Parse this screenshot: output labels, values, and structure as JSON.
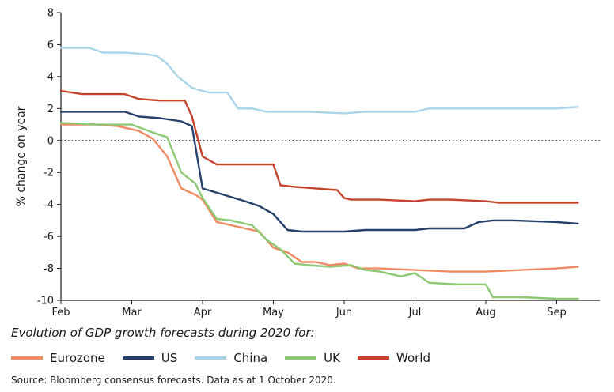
{
  "chart_data": {
    "type": "line",
    "title": "",
    "subtitle": "Evolution of GDP growth forecasts during 2020 for:",
    "xlabel": "",
    "ylabel": "% change on year",
    "ylim": [
      -10,
      8
    ],
    "yticks": [
      8,
      6,
      4,
      2,
      0,
      -2,
      -4,
      -6,
      -8,
      -10
    ],
    "xlim": [
      0,
      7.4
    ],
    "xticks": [
      {
        "label": "Feb",
        "x": 0
      },
      {
        "label": "Mar",
        "x": 1
      },
      {
        "label": "Apr",
        "x": 2
      },
      {
        "label": "May",
        "x": 3
      },
      {
        "label": "Jun",
        "x": 4
      },
      {
        "label": "Jul",
        "x": 5
      },
      {
        "label": "Aug",
        "x": 6
      },
      {
        "label": "Sep",
        "x": 7
      }
    ],
    "zero_line": true,
    "legend_position": "bottom",
    "series": [
      {
        "name": "Eurozone",
        "color": "#f08a63",
        "points": [
          [
            0,
            1.0
          ],
          [
            0.5,
            1.0
          ],
          [
            0.8,
            0.9
          ],
          [
            1.1,
            0.6
          ],
          [
            1.3,
            0.1
          ],
          [
            1.5,
            -1.0
          ],
          [
            1.7,
            -3.0
          ],
          [
            1.9,
            -3.4
          ],
          [
            2.0,
            -3.7
          ],
          [
            2.2,
            -5.1
          ],
          [
            2.5,
            -5.4
          ],
          [
            2.8,
            -5.7
          ],
          [
            3.0,
            -6.7
          ],
          [
            3.2,
            -7.0
          ],
          [
            3.4,
            -7.6
          ],
          [
            3.6,
            -7.6
          ],
          [
            3.8,
            -7.8
          ],
          [
            4.0,
            -7.7
          ],
          [
            4.2,
            -8.0
          ],
          [
            4.5,
            -8.0
          ],
          [
            5.0,
            -8.1
          ],
          [
            5.5,
            -8.2
          ],
          [
            6.0,
            -8.2
          ],
          [
            6.5,
            -8.1
          ],
          [
            7.0,
            -8.0
          ],
          [
            7.3,
            -7.9
          ]
        ]
      },
      {
        "name": "US",
        "color": "#26406c",
        "points": [
          [
            0,
            1.8
          ],
          [
            0.5,
            1.8
          ],
          [
            0.9,
            1.8
          ],
          [
            1.1,
            1.5
          ],
          [
            1.4,
            1.4
          ],
          [
            1.7,
            1.2
          ],
          [
            1.85,
            0.9
          ],
          [
            2.0,
            -3.0
          ],
          [
            2.3,
            -3.4
          ],
          [
            2.6,
            -3.8
          ],
          [
            2.8,
            -4.1
          ],
          [
            3.0,
            -4.6
          ],
          [
            3.1,
            -5.1
          ],
          [
            3.2,
            -5.6
          ],
          [
            3.4,
            -5.7
          ],
          [
            4.0,
            -5.7
          ],
          [
            4.3,
            -5.6
          ],
          [
            5.0,
            -5.6
          ],
          [
            5.2,
            -5.5
          ],
          [
            5.7,
            -5.5
          ],
          [
            5.9,
            -5.1
          ],
          [
            6.1,
            -5.0
          ],
          [
            6.4,
            -5.0
          ],
          [
            7.0,
            -5.1
          ],
          [
            7.3,
            -5.2
          ]
        ]
      },
      {
        "name": "China",
        "color": "#a9d5e6",
        "points": [
          [
            0,
            5.8
          ],
          [
            0.4,
            5.8
          ],
          [
            0.6,
            5.5
          ],
          [
            0.9,
            5.5
          ],
          [
            1.2,
            5.4
          ],
          [
            1.35,
            5.3
          ],
          [
            1.5,
            4.8
          ],
          [
            1.65,
            4.0
          ],
          [
            1.85,
            3.3
          ],
          [
            2.0,
            3.1
          ],
          [
            2.1,
            3.0
          ],
          [
            2.35,
            3.0
          ],
          [
            2.5,
            2.0
          ],
          [
            2.7,
            2.0
          ],
          [
            2.9,
            1.8
          ],
          [
            3.5,
            1.8
          ],
          [
            4.0,
            1.7
          ],
          [
            4.3,
            1.8
          ],
          [
            5.0,
            1.8
          ],
          [
            5.2,
            2.0
          ],
          [
            6.0,
            2.0
          ],
          [
            7.0,
            2.0
          ],
          [
            7.3,
            2.1
          ]
        ]
      },
      {
        "name": "UK",
        "color": "#8dc873",
        "points": [
          [
            0,
            1.1
          ],
          [
            0.5,
            1.0
          ],
          [
            1.0,
            1.0
          ],
          [
            1.3,
            0.5
          ],
          [
            1.5,
            0.2
          ],
          [
            1.7,
            -2.0
          ],
          [
            1.9,
            -2.7
          ],
          [
            2.0,
            -3.6
          ],
          [
            2.2,
            -4.9
          ],
          [
            2.4,
            -5.0
          ],
          [
            2.7,
            -5.3
          ],
          [
            2.9,
            -6.2
          ],
          [
            3.1,
            -6.8
          ],
          [
            3.3,
            -7.7
          ],
          [
            3.5,
            -7.8
          ],
          [
            3.8,
            -7.9
          ],
          [
            4.1,
            -7.8
          ],
          [
            4.3,
            -8.1
          ],
          [
            4.5,
            -8.2
          ],
          [
            4.8,
            -8.5
          ],
          [
            5.0,
            -8.3
          ],
          [
            5.2,
            -8.9
          ],
          [
            5.6,
            -9.0
          ],
          [
            6.0,
            -9.0
          ],
          [
            6.1,
            -9.8
          ],
          [
            6.5,
            -9.8
          ],
          [
            7.0,
            -9.9
          ],
          [
            7.3,
            -9.9
          ]
        ]
      },
      {
        "name": "World",
        "color": "#c4432b",
        "points": [
          [
            0,
            3.1
          ],
          [
            0.3,
            2.9
          ],
          [
            0.6,
            2.9
          ],
          [
            0.9,
            2.9
          ],
          [
            1.1,
            2.6
          ],
          [
            1.4,
            2.5
          ],
          [
            1.6,
            2.5
          ],
          [
            1.75,
            2.5
          ],
          [
            1.85,
            1.5
          ],
          [
            2.0,
            -1.0
          ],
          [
            2.2,
            -1.5
          ],
          [
            2.5,
            -1.5
          ],
          [
            2.7,
            -1.5
          ],
          [
            3.0,
            -1.5
          ],
          [
            3.1,
            -2.8
          ],
          [
            3.3,
            -2.9
          ],
          [
            3.6,
            -3.0
          ],
          [
            3.9,
            -3.1
          ],
          [
            4.0,
            -3.6
          ],
          [
            4.1,
            -3.7
          ],
          [
            4.5,
            -3.7
          ],
          [
            5.0,
            -3.8
          ],
          [
            5.2,
            -3.7
          ],
          [
            5.5,
            -3.7
          ],
          [
            6.0,
            -3.8
          ],
          [
            6.2,
            -3.9
          ],
          [
            7.0,
            -3.9
          ],
          [
            7.3,
            -3.9
          ]
        ]
      }
    ]
  },
  "source_text": "Source: Bloomberg consensus forecasts. Data as at 1 October 2020."
}
